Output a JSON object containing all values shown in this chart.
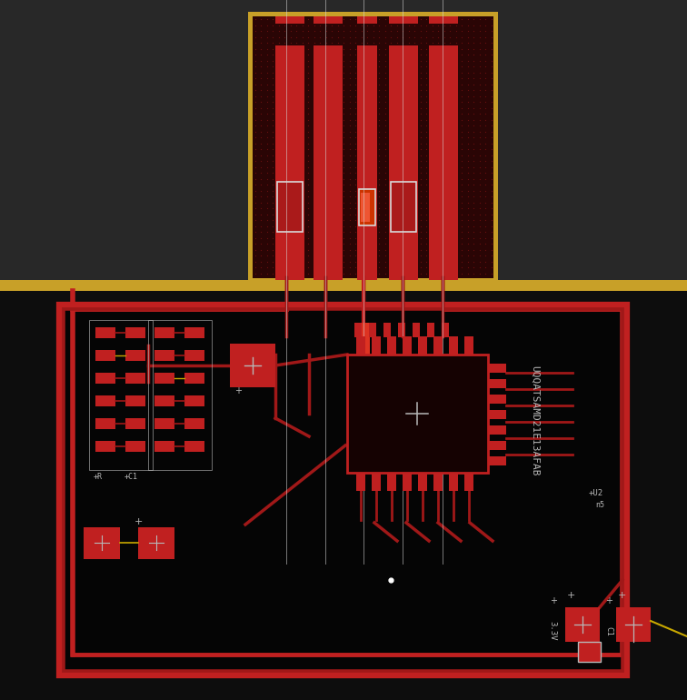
{
  "bg_gray": "#2a2a2a",
  "bg_black": "#0d0d0d",
  "copper": "#8b1515",
  "copper_bright": "#c02020",
  "copper_mid": "#a01818",
  "copper_trace": "#991818",
  "connector_fill": "#2a0505",
  "dot_color": "#6a1010",
  "gold": "#c8a028",
  "gold_dark": "#9a7818",
  "silk": "#b8b8b8",
  "silk_dim": "#888888",
  "yellow": "#c8a800",
  "white": "#d8d8d8",
  "pad_outline": "#c0c0c0",
  "label_SAMD": "UQQATSAMD21E13AFAB",
  "label_R": "+R",
  "label_C1": "+C1",
  "label_U2": "+U2",
  "label_n5": "n5"
}
